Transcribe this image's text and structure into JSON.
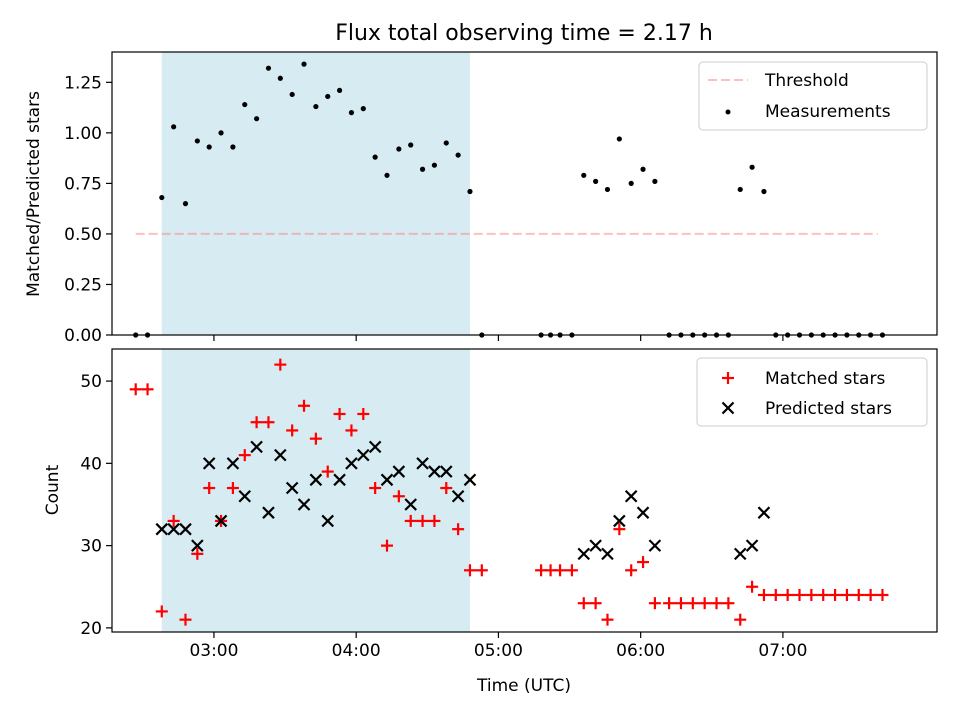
{
  "title": "Flux total observing time = 2.17 h",
  "colors": {
    "shade": "#add8e6",
    "threshold": "#ff8080",
    "measurement": "#000000",
    "matched": "#ff0000",
    "predicted": "#000000"
  },
  "chart_data": [
    {
      "type": "scatter",
      "ylabel": "Matched/Predicted stars",
      "ylim": [
        0.0,
        1.4
      ],
      "yticks": [
        0.0,
        0.25,
        0.5,
        0.75,
        1.0,
        1.25
      ],
      "ytick_labels": [
        "0.00",
        "0.25",
        "0.50",
        "0.75",
        "1.00",
        "1.25"
      ],
      "xlim": [
        "02:17",
        "08:05"
      ],
      "xticks": [
        "03:00",
        "04:00",
        "05:00",
        "06:00",
        "07:00"
      ],
      "grid": false,
      "legend": "top-right",
      "shaded_interval": [
        "02:38",
        "04:48"
      ],
      "threshold": {
        "name": "Threshold",
        "value": 0.5,
        "x": [
          "02:27",
          "07:40"
        ]
      },
      "series": [
        {
          "name": "Measurements",
          "points": [
            [
              "02:27",
              0.0
            ],
            [
              "02:32",
              0.0
            ],
            [
              "02:38",
              0.68
            ],
            [
              "02:43",
              1.03
            ],
            [
              "02:48",
              0.65
            ],
            [
              "02:53",
              0.96
            ],
            [
              "02:58",
              0.93
            ],
            [
              "03:03",
              1.0
            ],
            [
              "03:08",
              0.93
            ],
            [
              "03:13",
              1.14
            ],
            [
              "03:18",
              1.07
            ],
            [
              "03:23",
              1.32
            ],
            [
              "03:28",
              1.27
            ],
            [
              "03:33",
              1.19
            ],
            [
              "03:38",
              1.34
            ],
            [
              "03:43",
              1.13
            ],
            [
              "03:48",
              1.18
            ],
            [
              "03:53",
              1.21
            ],
            [
              "03:58",
              1.1
            ],
            [
              "04:03",
              1.12
            ],
            [
              "04:08",
              0.88
            ],
            [
              "04:13",
              0.79
            ],
            [
              "04:18",
              0.92
            ],
            [
              "04:23",
              0.94
            ],
            [
              "04:28",
              0.82
            ],
            [
              "04:33",
              0.84
            ],
            [
              "04:38",
              0.95
            ],
            [
              "04:43",
              0.89
            ],
            [
              "04:48",
              0.71
            ],
            [
              "04:53",
              0.0
            ],
            [
              "05:18",
              0.0
            ],
            [
              "05:22",
              0.0
            ],
            [
              "05:26",
              0.0
            ],
            [
              "05:31",
              0.0
            ],
            [
              "05:36",
              0.79
            ],
            [
              "05:41",
              0.76
            ],
            [
              "05:46",
              0.72
            ],
            [
              "05:51",
              0.97
            ],
            [
              "05:56",
              0.75
            ],
            [
              "06:01",
              0.82
            ],
            [
              "06:06",
              0.76
            ],
            [
              "06:12",
              0.0
            ],
            [
              "06:17",
              0.0
            ],
            [
              "06:22",
              0.0
            ],
            [
              "06:27",
              0.0
            ],
            [
              "06:32",
              0.0
            ],
            [
              "06:37",
              0.0
            ],
            [
              "06:42",
              0.72
            ],
            [
              "06:47",
              0.83
            ],
            [
              "06:52",
              0.71
            ],
            [
              "06:57",
              0.0
            ],
            [
              "07:02",
              0.0
            ],
            [
              "07:07",
              0.0
            ],
            [
              "07:12",
              0.0
            ],
            [
              "07:17",
              0.0
            ],
            [
              "07:22",
              0.0
            ],
            [
              "07:27",
              0.0
            ],
            [
              "07:32",
              0.0
            ],
            [
              "07:37",
              0.0
            ],
            [
              "07:42",
              0.0
            ]
          ]
        }
      ]
    },
    {
      "type": "scatter",
      "xlabel": "Time (UTC)",
      "ylabel": "Count",
      "ylim": [
        19.5,
        53.9
      ],
      "yticks": [
        20,
        30,
        40,
        50
      ],
      "ytick_labels": [
        "20",
        "30",
        "40",
        "50"
      ],
      "xlim": [
        "02:17",
        "08:05"
      ],
      "xticks": [
        "03:00",
        "04:00",
        "05:00",
        "06:00",
        "07:00"
      ],
      "xtick_labels": [
        "03:00",
        "04:00",
        "05:00",
        "06:00",
        "07:00"
      ],
      "grid": false,
      "legend": "top-right",
      "shaded_interval": [
        "02:38",
        "04:48"
      ],
      "series": [
        {
          "name": "Matched stars",
          "marker": "plus",
          "points": [
            [
              "02:27",
              49
            ],
            [
              "02:32",
              49
            ],
            [
              "02:38",
              22
            ],
            [
              "02:43",
              33
            ],
            [
              "02:48",
              21
            ],
            [
              "02:53",
              29
            ],
            [
              "02:58",
              37
            ],
            [
              "03:03",
              33
            ],
            [
              "03:08",
              37
            ],
            [
              "03:13",
              41
            ],
            [
              "03:18",
              45
            ],
            [
              "03:23",
              45
            ],
            [
              "03:28",
              52
            ],
            [
              "03:33",
              44
            ],
            [
              "03:38",
              47
            ],
            [
              "03:43",
              43
            ],
            [
              "03:48",
              39
            ],
            [
              "03:53",
              46
            ],
            [
              "03:58",
              44
            ],
            [
              "04:03",
              46
            ],
            [
              "04:08",
              37
            ],
            [
              "04:13",
              30
            ],
            [
              "04:18",
              36
            ],
            [
              "04:23",
              33
            ],
            [
              "04:28",
              33
            ],
            [
              "04:33",
              33
            ],
            [
              "04:38",
              37
            ],
            [
              "04:43",
              32
            ],
            [
              "04:48",
              27
            ],
            [
              "04:53",
              27
            ],
            [
              "05:18",
              27
            ],
            [
              "05:22",
              27
            ],
            [
              "05:26",
              27
            ],
            [
              "05:31",
              27
            ],
            [
              "05:36",
              23
            ],
            [
              "05:41",
              23
            ],
            [
              "05:46",
              21
            ],
            [
              "05:51",
              32
            ],
            [
              "05:56",
              27
            ],
            [
              "06:01",
              28
            ],
            [
              "06:06",
              23
            ],
            [
              "06:12",
              23
            ],
            [
              "06:17",
              23
            ],
            [
              "06:22",
              23
            ],
            [
              "06:27",
              23
            ],
            [
              "06:32",
              23
            ],
            [
              "06:37",
              23
            ],
            [
              "06:42",
              21
            ],
            [
              "06:47",
              25
            ],
            [
              "06:52",
              24
            ],
            [
              "06:57",
              24
            ],
            [
              "07:02",
              24
            ],
            [
              "07:07",
              24
            ],
            [
              "07:12",
              24
            ],
            [
              "07:17",
              24
            ],
            [
              "07:22",
              24
            ],
            [
              "07:27",
              24
            ],
            [
              "07:32",
              24
            ],
            [
              "07:37",
              24
            ],
            [
              "07:42",
              24
            ]
          ]
        },
        {
          "name": "Predicted stars",
          "marker": "x",
          "points": [
            [
              "02:38",
              32
            ],
            [
              "02:43",
              32
            ],
            [
              "02:48",
              32
            ],
            [
              "02:53",
              30
            ],
            [
              "02:58",
              40
            ],
            [
              "03:03",
              33
            ],
            [
              "03:08",
              40
            ],
            [
              "03:13",
              36
            ],
            [
              "03:18",
              42
            ],
            [
              "03:23",
              34
            ],
            [
              "03:28",
              41
            ],
            [
              "03:33",
              37
            ],
            [
              "03:38",
              35
            ],
            [
              "03:43",
              38
            ],
            [
              "03:48",
              33
            ],
            [
              "03:53",
              38
            ],
            [
              "03:58",
              40
            ],
            [
              "04:03",
              41
            ],
            [
              "04:08",
              42
            ],
            [
              "04:13",
              38
            ],
            [
              "04:18",
              39
            ],
            [
              "04:23",
              35
            ],
            [
              "04:28",
              40
            ],
            [
              "04:33",
              39
            ],
            [
              "04:38",
              39
            ],
            [
              "04:43",
              36
            ],
            [
              "04:48",
              38
            ],
            [
              "05:36",
              29
            ],
            [
              "05:41",
              30
            ],
            [
              "05:46",
              29
            ],
            [
              "05:51",
              33
            ],
            [
              "05:56",
              36
            ],
            [
              "06:01",
              34
            ],
            [
              "06:06",
              30
            ],
            [
              "06:42",
              29
            ],
            [
              "06:47",
              30
            ],
            [
              "06:52",
              34
            ]
          ]
        }
      ]
    }
  ]
}
